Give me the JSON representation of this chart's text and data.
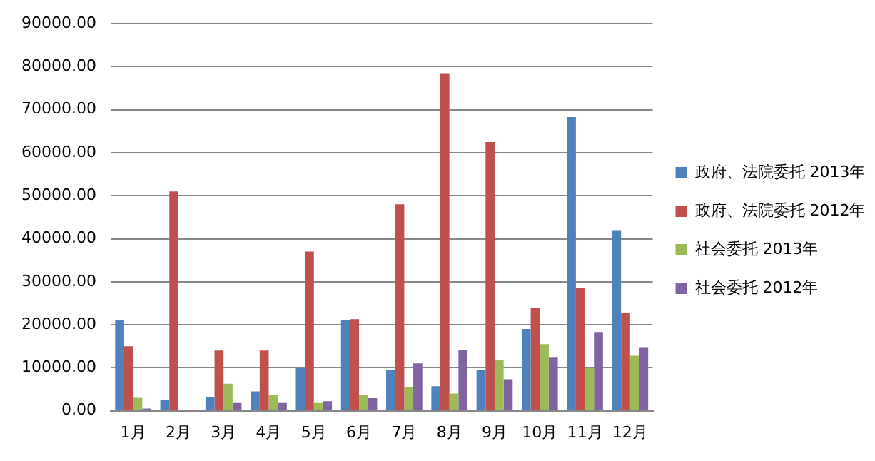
{
  "chart_data": {
    "type": "bar",
    "categories": [
      "1月",
      "2月",
      "3月",
      "4月",
      "5月",
      "6月",
      "7月",
      "8月",
      "9月",
      "10月",
      "11月",
      "12月"
    ],
    "series": [
      {
        "name": "政府、法院委托 2013年",
        "color": "#4f81bd",
        "values": [
          21000,
          2500,
          3200,
          4500,
          10000,
          21000,
          9500,
          5700,
          9500,
          19000,
          68300,
          42000
        ]
      },
      {
        "name": "政府、法院委托 2012年",
        "color": "#c0504d",
        "values": [
          15000,
          51000,
          14000,
          14000,
          37000,
          21300,
          48000,
          78500,
          62500,
          24000,
          28500,
          22700
        ]
      },
      {
        "name": "社会委托 2013年",
        "color": "#9bbb59",
        "values": [
          3000,
          0,
          6300,
          3700,
          1800,
          3600,
          5500,
          4000,
          11700,
          15500,
          9900,
          12800
        ]
      },
      {
        "name": "社会委托 2012年",
        "color": "#8064a2",
        "values": [
          500,
          0,
          1800,
          1800,
          2200,
          2900,
          11000,
          14200,
          7300,
          12500,
          18300,
          14800
        ]
      }
    ],
    "ylim": [
      0,
      90000
    ],
    "yticks": [
      {
        "value": 0,
        "label": "0.00"
      },
      {
        "value": 10000,
        "label": "10000.00"
      },
      {
        "value": 20000,
        "label": "20000.00"
      },
      {
        "value": 30000,
        "label": "30000.00"
      },
      {
        "value": 40000,
        "label": "40000.00"
      },
      {
        "value": 50000,
        "label": "50000.00"
      },
      {
        "value": 60000,
        "label": "60000.00"
      },
      {
        "value": 70000,
        "label": "70000.00"
      },
      {
        "value": 80000,
        "label": "80000.00"
      },
      {
        "value": 90000,
        "label": "90000.00"
      }
    ],
    "grid": "y",
    "legend": "right"
  }
}
